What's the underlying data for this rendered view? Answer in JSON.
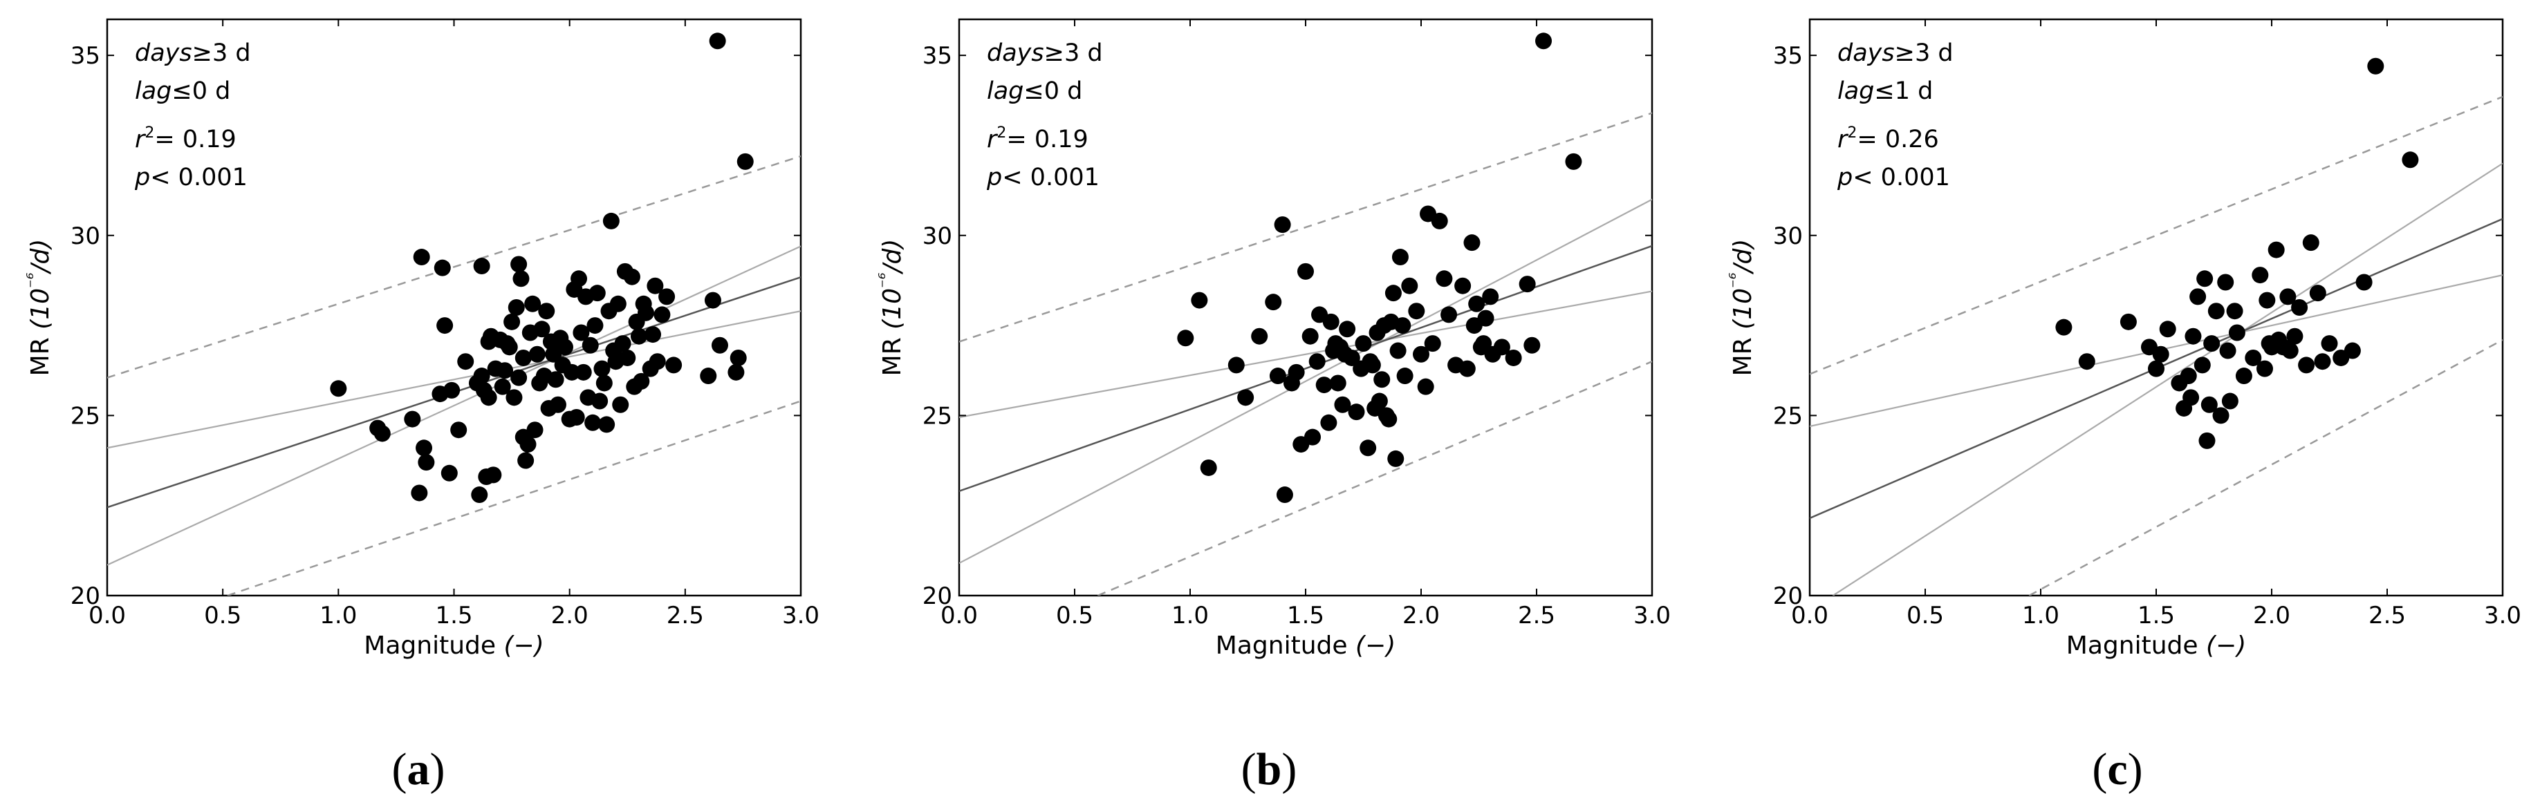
{
  "chart_data": [
    {
      "panel_label": "(a)",
      "type": "scatter",
      "xlabel": "Magnitude (−)",
      "ylabel": "MR (10⁻⁶/d)",
      "xlim": [
        0.0,
        3.0
      ],
      "ylim": [
        20,
        36
      ],
      "xticks": [
        "0.0",
        "0.5",
        "1.0",
        "1.5",
        "2.0",
        "2.5",
        "3.0"
      ],
      "yticks": [
        "20",
        "25",
        "30",
        "35"
      ],
      "annotations": {
        "days": "days≥3 d",
        "lag": "lag≤0 d",
        "r2": "r2= 0.19",
        "p": "p< 0.001"
      },
      "colors": {
        "points": "#000000",
        "fit": "#555555",
        "ci": "#aaaaaa",
        "pi": "#999999"
      },
      "fit": {
        "intercept": 22.45,
        "slope": 2.13
      },
      "confidence_band": {
        "lower": {
          "x": [
            0.0,
            3.0
          ],
          "y": [
            20.85,
            29.7
          ]
        },
        "upper": {
          "x": [
            0.0,
            3.0
          ],
          "y": [
            24.1,
            27.9
          ]
        }
      },
      "prediction_band": {
        "lower": {
          "x": [
            0.52,
            3.0
          ],
          "y": [
            20.0,
            25.4
          ]
        },
        "upper": {
          "x": [
            0.0,
            3.0
          ],
          "y": [
            26.05,
            32.2
          ]
        }
      },
      "points": {
        "x": [
          1.0,
          1.17,
          1.19,
          1.32,
          1.35,
          1.36,
          1.37,
          1.38,
          1.44,
          1.45,
          1.46,
          1.48,
          1.49,
          1.52,
          1.55,
          1.6,
          1.61,
          1.62,
          1.62,
          1.63,
          1.64,
          1.65,
          1.65,
          1.66,
          1.67,
          1.68,
          1.7,
          1.71,
          1.72,
          1.73,
          1.74,
          1.75,
          1.76,
          1.77,
          1.78,
          1.78,
          1.79,
          1.8,
          1.8,
          1.81,
          1.82,
          1.83,
          1.84,
          1.85,
          1.86,
          1.87,
          1.88,
          1.89,
          1.9,
          1.91,
          1.92,
          1.93,
          1.94,
          1.95,
          1.96,
          1.97,
          1.98,
          2.0,
          2.01,
          2.02,
          2.03,
          2.04,
          2.05,
          2.06,
          2.07,
          2.08,
          2.09,
          2.1,
          2.11,
          2.12,
          2.13,
          2.14,
          2.15,
          2.16,
          2.17,
          2.18,
          2.19,
          2.2,
          2.21,
          2.22,
          2.23,
          2.24,
          2.25,
          2.27,
          2.28,
          2.29,
          2.3,
          2.31,
          2.32,
          2.33,
          2.35,
          2.36,
          2.37,
          2.38,
          2.4,
          2.42,
          2.45,
          2.6,
          2.62,
          2.64,
          2.65,
          2.72,
          2.73,
          2.76
        ],
        "y": [
          25.75,
          24.65,
          24.5,
          24.9,
          22.85,
          29.4,
          24.1,
          23.7,
          25.6,
          29.1,
          27.5,
          23.4,
          25.7,
          24.6,
          26.5,
          25.9,
          22.8,
          26.1,
          29.15,
          25.7,
          23.3,
          27.05,
          25.5,
          27.2,
          23.35,
          26.3,
          27.1,
          25.8,
          26.25,
          27.0,
          26.9,
          27.6,
          25.5,
          28.0,
          26.05,
          29.2,
          28.8,
          26.6,
          24.4,
          23.75,
          24.2,
          27.3,
          28.1,
          24.6,
          26.7,
          25.9,
          27.4,
          26.1,
          27.9,
          25.2,
          27.05,
          26.7,
          26.0,
          25.3,
          27.15,
          26.4,
          26.9,
          24.9,
          26.2,
          28.5,
          24.95,
          28.8,
          27.3,
          26.2,
          28.3,
          25.5,
          26.95,
          24.8,
          27.5,
          28.4,
          25.4,
          26.3,
          25.9,
          24.75,
          27.9,
          30.4,
          26.8,
          26.5,
          28.1,
          25.3,
          27.0,
          29.0,
          26.6,
          28.85,
          25.8,
          27.6,
          27.2,
          25.95,
          28.1,
          27.85,
          26.3,
          27.25,
          28.6,
          26.5,
          27.8,
          28.3,
          26.4,
          26.1,
          28.2,
          35.4,
          26.95,
          26.2,
          26.6,
          32.05
        ]
      }
    },
    {
      "panel_label": "(b)",
      "type": "scatter",
      "xlabel": "Magnitude (−)",
      "ylabel": "MR (10⁻⁶/d)",
      "xlim": [
        0.0,
        3.0
      ],
      "ylim": [
        20,
        36
      ],
      "xticks": [
        "0.0",
        "0.5",
        "1.0",
        "1.5",
        "2.0",
        "2.5",
        "3.0"
      ],
      "yticks": [
        "20",
        "25",
        "30",
        "35"
      ],
      "annotations": {
        "days": "days≥3 d",
        "lag": "lag≤0 d",
        "r2": "r2= 0.19",
        "p": "p< 0.001"
      },
      "colors": {
        "points": "#000000",
        "fit": "#555555",
        "ci": "#aaaaaa",
        "pi": "#999999"
      },
      "fit": {
        "intercept": 22.9,
        "slope": 2.27
      },
      "confidence_band": {
        "lower": {
          "x": [
            0.0,
            3.0
          ],
          "y": [
            20.9,
            31.0
          ]
        },
        "upper": {
          "x": [
            0.0,
            3.0
          ],
          "y": [
            24.95,
            28.45
          ]
        }
      },
      "prediction_band": {
        "lower": {
          "x": [
            0.6,
            3.0
          ],
          "y": [
            20.0,
            26.5
          ]
        },
        "upper": {
          "x": [
            0.0,
            3.0
          ],
          "y": [
            27.05,
            33.4
          ]
        }
      },
      "points": {
        "x": [
          0.98,
          1.04,
          1.08,
          1.2,
          1.24,
          1.3,
          1.36,
          1.38,
          1.4,
          1.41,
          1.44,
          1.46,
          1.48,
          1.5,
          1.52,
          1.53,
          1.55,
          1.56,
          1.58,
          1.6,
          1.61,
          1.62,
          1.63,
          1.64,
          1.65,
          1.66,
          1.67,
          1.68,
          1.7,
          1.72,
          1.74,
          1.75,
          1.77,
          1.78,
          1.79,
          1.8,
          1.81,
          1.82,
          1.83,
          1.84,
          1.85,
          1.86,
          1.87,
          1.88,
          1.89,
          1.9,
          1.91,
          1.92,
          1.93,
          1.95,
          1.98,
          2.0,
          2.02,
          2.03,
          2.05,
          2.08,
          2.1,
          2.12,
          2.15,
          2.18,
          2.2,
          2.22,
          2.23,
          2.24,
          2.26,
          2.27,
          2.28,
          2.3,
          2.31,
          2.35,
          2.4,
          2.46,
          2.48,
          2.53,
          2.66
        ],
        "y": [
          27.15,
          28.2,
          23.55,
          26.4,
          25.5,
          27.2,
          28.15,
          26.1,
          30.3,
          22.8,
          25.9,
          26.2,
          24.2,
          29.0,
          27.2,
          24.4,
          26.5,
          27.8,
          25.85,
          24.8,
          27.6,
          26.8,
          27.0,
          25.9,
          26.9,
          25.3,
          26.7,
          27.4,
          26.6,
          25.1,
          26.3,
          27.0,
          24.1,
          26.5,
          26.4,
          25.2,
          27.3,
          25.4,
          26.0,
          27.5,
          25.0,
          24.9,
          27.6,
          28.4,
          23.8,
          26.8,
          29.4,
          27.5,
          26.1,
          28.6,
          27.9,
          26.7,
          25.8,
          30.6,
          27.0,
          30.4,
          28.8,
          27.8,
          26.4,
          28.6,
          26.3,
          29.8,
          27.5,
          28.1,
          26.9,
          27.0,
          27.7,
          28.3,
          26.7,
          26.9,
          26.6,
          28.65,
          26.95,
          35.4,
          32.05
        ]
      }
    },
    {
      "panel_label": "(c)",
      "type": "scatter",
      "xlabel": "Magnitude (−)",
      "ylabel": "MR (10⁻⁶/d)",
      "xlim": [
        0.0,
        3.0
      ],
      "ylim": [
        20,
        36
      ],
      "xticks": [
        "0.0",
        "0.5",
        "1.0",
        "1.5",
        "2.0",
        "2.5",
        "3.0"
      ],
      "yticks": [
        "20",
        "25",
        "30",
        "35"
      ],
      "annotations": {
        "days": "days≥3 d",
        "lag": "lag≤1 d",
        "r2": "r2= 0.26",
        "p": "p< 0.001"
      },
      "colors": {
        "points": "#000000",
        "fit": "#555555",
        "ci": "#aaaaaa",
        "pi": "#999999"
      },
      "fit": {
        "intercept": 22.15,
        "slope": 2.77
      },
      "confidence_band": {
        "lower": {
          "x": [
            0.1,
            3.0
          ],
          "y": [
            20.0,
            32.0
          ]
        },
        "upper": {
          "x": [
            0.0,
            3.0
          ],
          "y": [
            24.7,
            28.9
          ]
        }
      },
      "prediction_band": {
        "lower": {
          "x": [
            0.95,
            3.0
          ],
          "y": [
            20.0,
            27.1
          ]
        },
        "upper": {
          "x": [
            0.0,
            3.0
          ],
          "y": [
            26.15,
            33.85
          ]
        }
      },
      "points": {
        "x": [
          1.1,
          1.2,
          1.38,
          1.47,
          1.5,
          1.52,
          1.55,
          1.6,
          1.62,
          1.64,
          1.65,
          1.66,
          1.68,
          1.7,
          1.71,
          1.72,
          1.73,
          1.74,
          1.76,
          1.78,
          1.8,
          1.81,
          1.82,
          1.84,
          1.85,
          1.88,
          1.92,
          1.95,
          1.97,
          1.98,
          1.99,
          2.0,
          2.02,
          2.03,
          2.05,
          2.07,
          2.08,
          2.1,
          2.12,
          2.15,
          2.17,
          2.2,
          2.22,
          2.25,
          2.3,
          2.35,
          2.4,
          2.45,
          2.6
        ],
        "y": [
          27.45,
          26.5,
          27.6,
          26.9,
          26.3,
          26.7,
          27.4,
          25.9,
          25.2,
          26.1,
          25.5,
          27.2,
          28.3,
          26.4,
          28.8,
          24.3,
          25.3,
          27.0,
          27.9,
          25.0,
          28.7,
          26.8,
          25.4,
          27.9,
          27.3,
          26.1,
          26.6,
          28.9,
          26.3,
          28.2,
          27.0,
          26.9,
          29.6,
          27.1,
          26.9,
          28.3,
          26.8,
          27.2,
          28.0,
          26.4,
          29.8,
          28.4,
          26.5,
          27.0,
          26.6,
          26.8,
          28.7,
          34.7,
          32.1
        ]
      }
    }
  ]
}
